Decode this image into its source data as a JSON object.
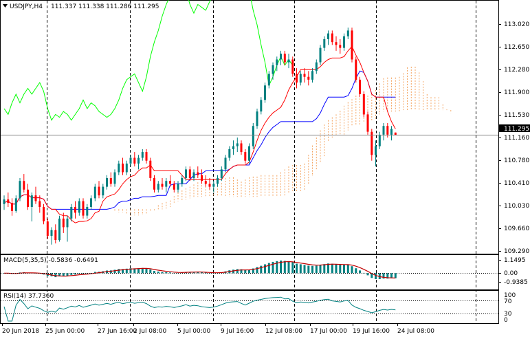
{
  "chart_header": {
    "symbol_label": "USDJPY,H4",
    "ohlc": "111.337 111.338 111.286 111.295"
  },
  "colors": {
    "bull_candle": "#008080",
    "bear_candle": "#ff0000",
    "tenkan": "#ff0000",
    "kijun": "#0000ff",
    "chikou": "#00ff00",
    "cloud": "#f4a460",
    "macd_hist": "#008080",
    "macd_signal": "#c00000",
    "rsi": "#008080"
  },
  "price_axis": {
    "ticks": [
      "113.020",
      "112.650",
      "112.280",
      "111.900",
      "111.530",
      "111.160",
      "110.780",
      "110.410",
      "110.030",
      "109.660",
      "109.290"
    ],
    "current_price_label": "111.295"
  },
  "time_axis": {
    "labels": [
      "20 Jun 2018",
      "25 Jun 00:00",
      "27 Jun 16:00",
      "2 Jul 08:00",
      "5 Jul 00:00",
      "9 Jul 16:00",
      "12 Jul 08:00",
      "17 Jul 00:00",
      "19 Jul 16:00",
      "24 Jul 08:00"
    ]
  },
  "macd_panel": {
    "label": "MACD(5,35,5) -0.5836 -0.6491",
    "ticks": [
      "1.1495",
      "0.00",
      "-0.9385"
    ]
  },
  "rsi_panel": {
    "label": "RSI(14) 37.7360",
    "ticks": [
      "100",
      "70",
      "30",
      "0"
    ]
  },
  "chart_data": {
    "type": "candlestick",
    "series": [
      {
        "name": "USDJPY,H4",
        "ohlc": [
          [
            110.1,
            110.25,
            110.0,
            110.18
          ],
          [
            110.18,
            110.3,
            110.05,
            110.12
          ],
          [
            110.12,
            110.2,
            109.9,
            109.98
          ],
          [
            109.98,
            110.25,
            109.95,
            110.2
          ],
          [
            110.2,
            110.55,
            110.15,
            110.5
          ],
          [
            110.5,
            110.62,
            110.3,
            110.35
          ],
          [
            110.35,
            110.45,
            110.0,
            110.05
          ],
          [
            110.05,
            110.3,
            109.8,
            110.25
          ],
          [
            110.25,
            110.4,
            110.1,
            110.15
          ],
          [
            110.15,
            110.25,
            109.95,
            110.05
          ],
          [
            110.05,
            110.1,
            109.75,
            109.8
          ],
          [
            109.8,
            109.85,
            109.5,
            109.55
          ],
          [
            109.55,
            109.7,
            109.4,
            109.65
          ],
          [
            109.65,
            109.75,
            109.42,
            109.48
          ],
          [
            109.48,
            109.9,
            109.45,
            109.85
          ],
          [
            109.85,
            109.95,
            109.6,
            109.7
          ],
          [
            109.7,
            109.9,
            109.45,
            109.85
          ],
          [
            109.85,
            110.1,
            109.8,
            110.05
          ],
          [
            110.05,
            110.15,
            109.85,
            109.95
          ],
          [
            109.95,
            110.2,
            109.9,
            110.15
          ],
          [
            110.15,
            110.2,
            109.85,
            109.9
          ],
          [
            109.9,
            110.1,
            109.85,
            110.05
          ],
          [
            110.05,
            110.25,
            110.0,
            110.2
          ],
          [
            110.2,
            110.45,
            110.15,
            110.4
          ],
          [
            110.4,
            110.5,
            110.2,
            110.25
          ],
          [
            110.25,
            110.45,
            110.2,
            110.4
          ],
          [
            110.4,
            110.6,
            110.35,
            110.55
          ],
          [
            110.55,
            110.65,
            110.4,
            110.45
          ],
          [
            110.45,
            110.7,
            110.4,
            110.65
          ],
          [
            110.65,
            110.85,
            110.6,
            110.8
          ],
          [
            110.8,
            110.9,
            110.6,
            110.65
          ],
          [
            110.65,
            110.85,
            110.6,
            110.8
          ],
          [
            110.8,
            110.95,
            110.75,
            110.9
          ],
          [
            110.9,
            111.0,
            110.75,
            110.8
          ],
          [
            110.8,
            110.95,
            110.7,
            110.9
          ],
          [
            110.9,
            111.05,
            110.85,
            111.0
          ],
          [
            111.0,
            111.05,
            110.8,
            110.85
          ],
          [
            110.85,
            110.9,
            110.5,
            110.55
          ],
          [
            110.55,
            110.6,
            110.3,
            110.35
          ],
          [
            110.35,
            110.5,
            110.3,
            110.45
          ],
          [
            110.45,
            110.55,
            110.35,
            110.4
          ],
          [
            110.4,
            110.55,
            110.3,
            110.5
          ],
          [
            110.5,
            110.6,
            110.4,
            110.45
          ],
          [
            110.45,
            110.5,
            110.3,
            110.35
          ],
          [
            110.35,
            110.5,
            110.3,
            110.45
          ],
          [
            110.45,
            110.6,
            110.4,
            110.55
          ],
          [
            110.55,
            110.75,
            110.5,
            110.7
          ],
          [
            110.7,
            110.75,
            110.5,
            110.55
          ],
          [
            110.55,
            110.7,
            110.5,
            110.65
          ],
          [
            110.65,
            110.75,
            110.55,
            110.6
          ],
          [
            110.6,
            110.7,
            110.45,
            110.5
          ],
          [
            110.5,
            110.6,
            110.4,
            110.45
          ],
          [
            110.45,
            110.55,
            110.35,
            110.4
          ],
          [
            110.4,
            110.5,
            110.3,
            110.45
          ],
          [
            110.45,
            110.6,
            110.4,
            110.55
          ],
          [
            110.55,
            110.75,
            110.5,
            110.7
          ],
          [
            110.7,
            110.95,
            110.65,
            110.9
          ],
          [
            110.9,
            111.1,
            110.85,
            111.05
          ],
          [
            111.05,
            111.2,
            110.95,
            111.1
          ],
          [
            111.1,
            111.25,
            111.0,
            111.15
          ],
          [
            111.15,
            111.2,
            110.95,
            111.0
          ],
          [
            111.0,
            111.05,
            110.8,
            110.85
          ],
          [
            110.85,
            111.15,
            110.8,
            111.1
          ],
          [
            111.1,
            111.5,
            111.05,
            111.45
          ],
          [
            111.45,
            111.75,
            111.4,
            111.7
          ],
          [
            111.7,
            111.95,
            111.65,
            111.9
          ],
          [
            111.9,
            112.2,
            111.85,
            112.15
          ],
          [
            112.15,
            112.4,
            112.1,
            112.35
          ],
          [
            112.35,
            112.55,
            112.25,
            112.5
          ],
          [
            112.5,
            112.65,
            112.4,
            112.6
          ],
          [
            112.6,
            112.75,
            112.5,
            112.7
          ],
          [
            112.7,
            112.75,
            112.5,
            112.55
          ],
          [
            112.55,
            112.7,
            112.45,
            112.6
          ],
          [
            112.6,
            112.65,
            112.3,
            112.35
          ],
          [
            112.35,
            112.45,
            112.1,
            112.2
          ],
          [
            112.2,
            112.4,
            112.15,
            112.35
          ],
          [
            112.35,
            112.45,
            112.2,
            112.3
          ],
          [
            112.3,
            112.4,
            112.15,
            112.25
          ],
          [
            112.25,
            112.45,
            112.2,
            112.4
          ],
          [
            112.4,
            112.6,
            112.35,
            112.55
          ],
          [
            112.55,
            112.85,
            112.5,
            112.8
          ],
          [
            112.8,
            113.0,
            112.75,
            112.95
          ],
          [
            112.95,
            113.1,
            112.85,
            113.05
          ],
          [
            113.05,
            113.1,
            112.85,
            112.9
          ],
          [
            112.9,
            113.0,
            112.75,
            112.85
          ],
          [
            112.85,
            112.95,
            112.7,
            112.8
          ],
          [
            112.8,
            113.05,
            112.75,
            113.0
          ],
          [
            113.0,
            113.15,
            112.95,
            113.1
          ],
          [
            113.1,
            113.15,
            112.55,
            112.6
          ],
          [
            112.6,
            112.65,
            112.2,
            112.25
          ],
          [
            112.25,
            112.3,
            111.95,
            112.0
          ],
          [
            112.0,
            112.05,
            111.6,
            111.65
          ],
          [
            111.65,
            111.7,
            111.3,
            111.35
          ],
          [
            111.35,
            111.4,
            110.85,
            110.95
          ],
          [
            110.95,
            111.2,
            110.75,
            111.1
          ],
          [
            111.1,
            111.35,
            111.05,
            111.3
          ],
          [
            111.3,
            111.5,
            111.2,
            111.45
          ],
          [
            111.45,
            111.5,
            111.25,
            111.3
          ],
          [
            111.3,
            111.45,
            111.2,
            111.4
          ],
          [
            111.337,
            111.338,
            111.286,
            111.295
          ]
        ]
      }
    ],
    "y_range": [
      109.29,
      113.39
    ],
    "macd_range": [
      -1.3,
      1.4
    ],
    "rsi_range": [
      0,
      100
    ],
    "rsi_levels": [
      70,
      30
    ],
    "grid": true
  }
}
